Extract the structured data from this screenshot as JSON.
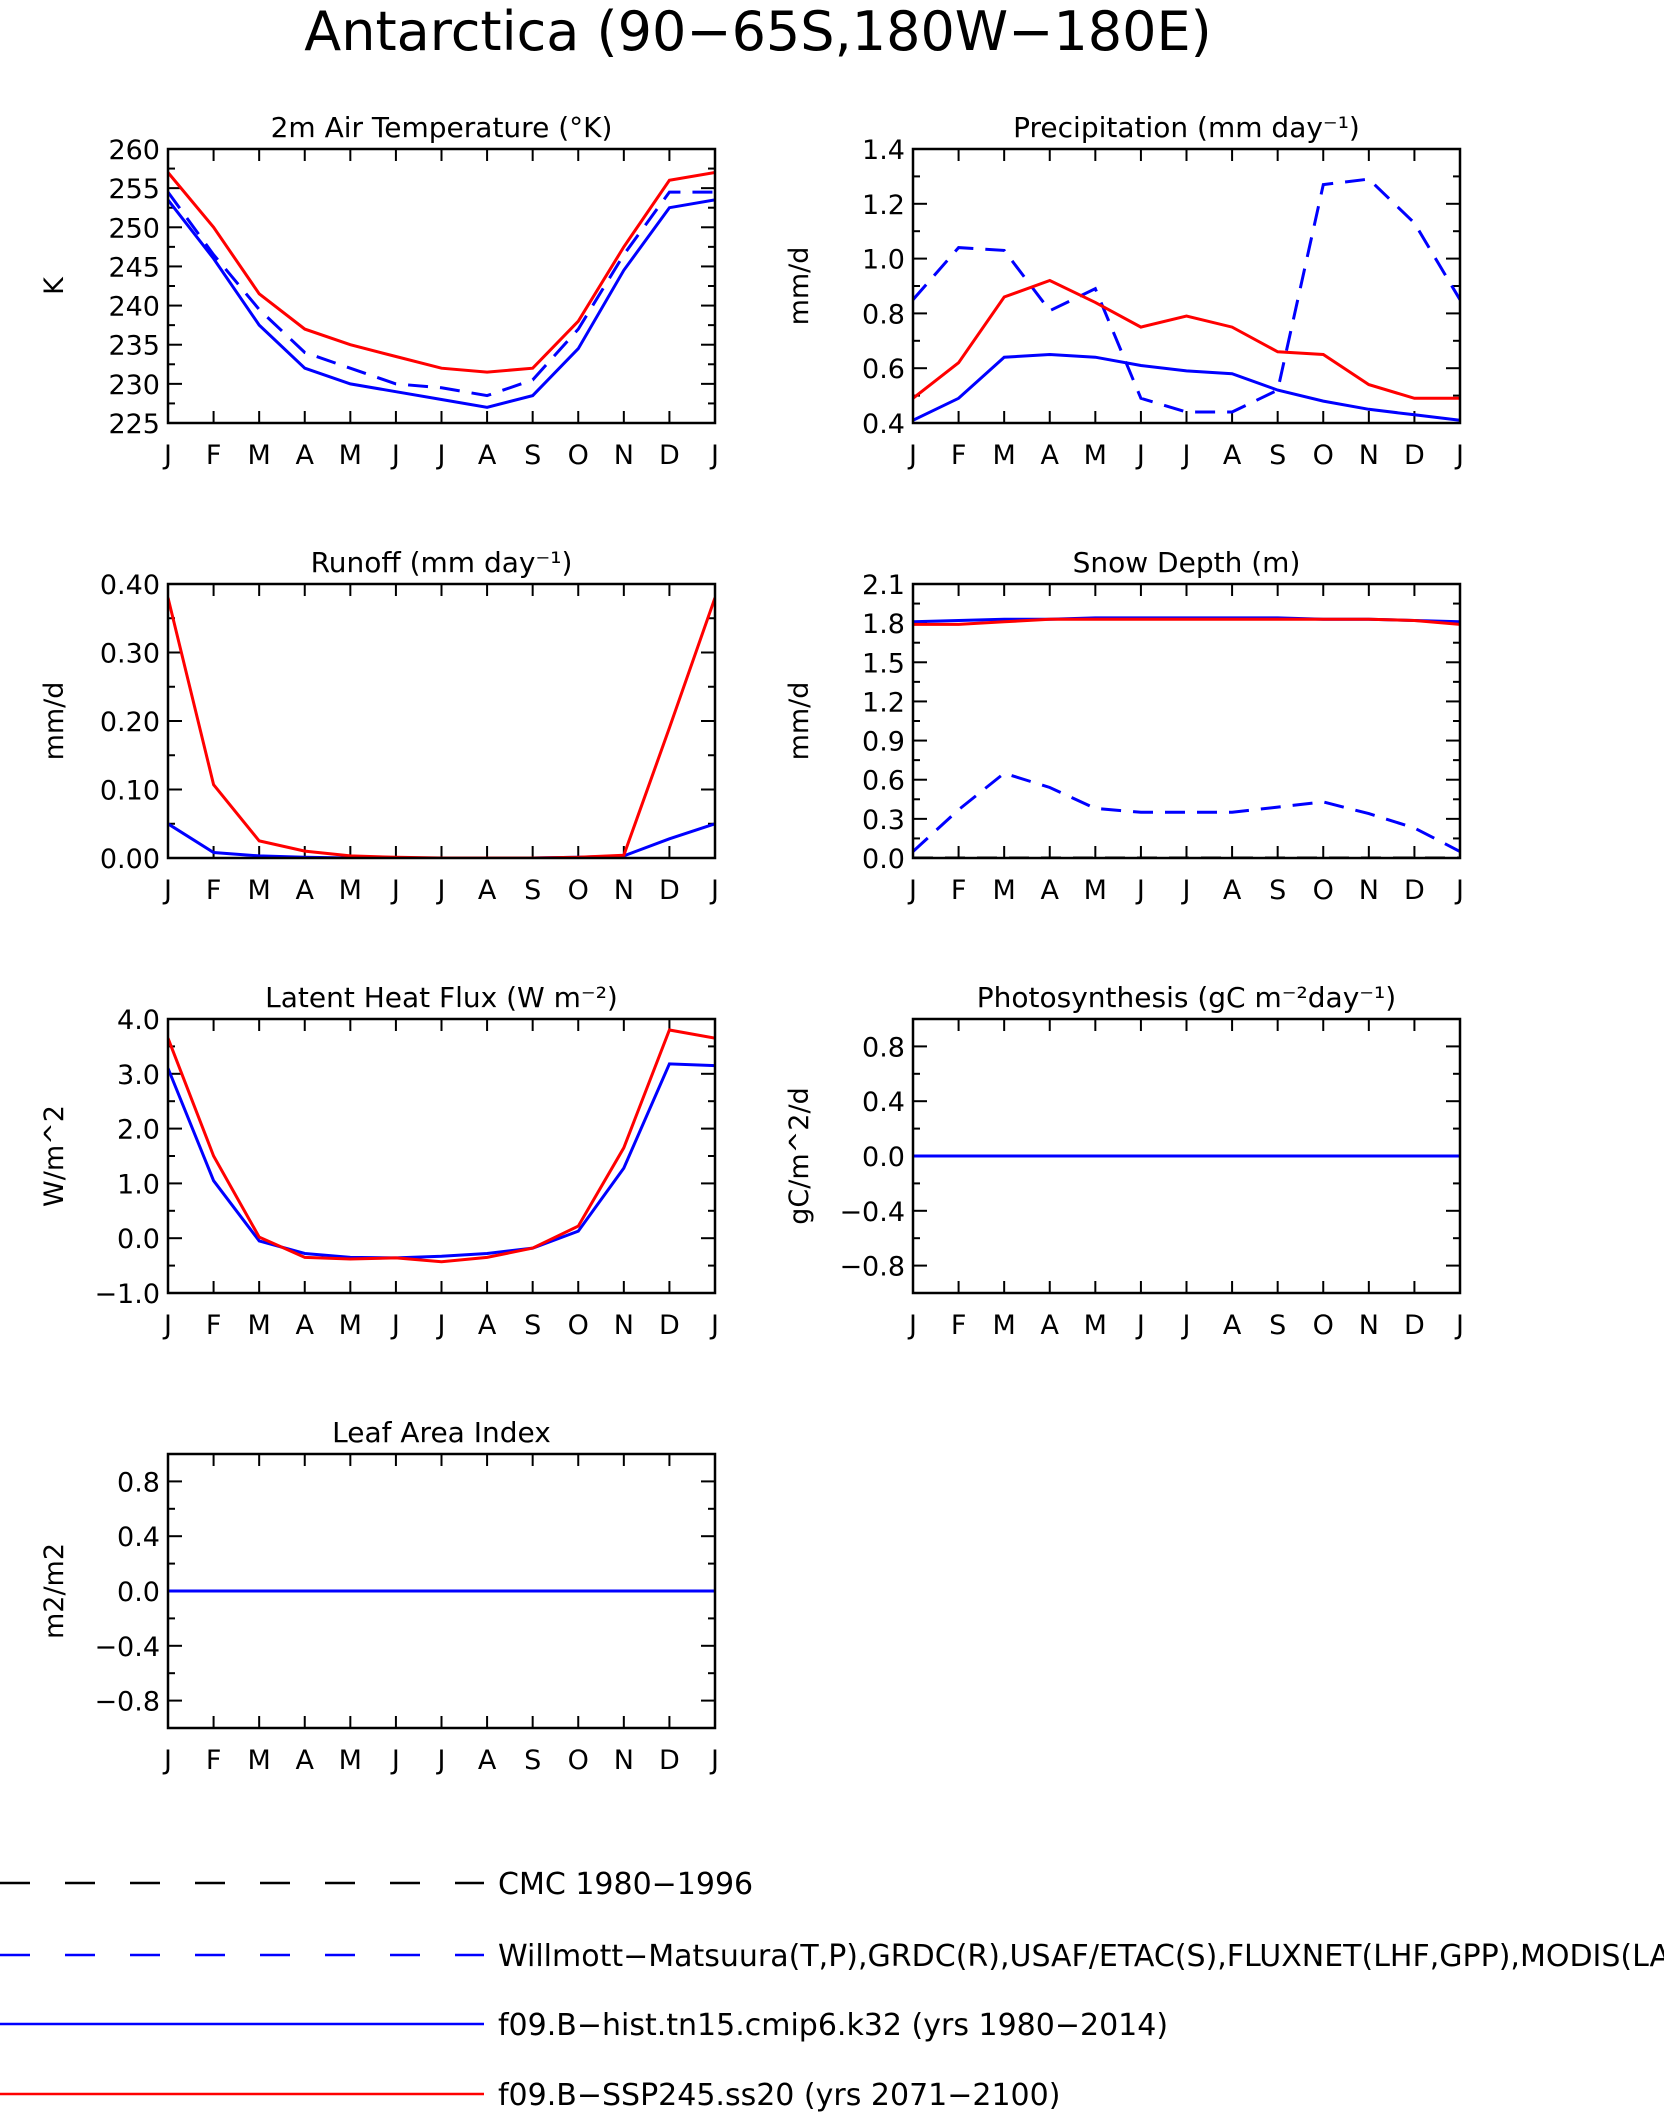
{
  "title": "Antarctica (90−65S,180W−180E)",
  "months": [
    "J",
    "F",
    "M",
    "A",
    "M",
    "J",
    "J",
    "A",
    "S",
    "O",
    "N",
    "D",
    "J"
  ],
  "colors": {
    "obs_cmc": "#000000",
    "obs_blue": "#0000ff",
    "model_hist": "#0000ff",
    "model_future": "#ff0000"
  },
  "chart_data": [
    {
      "id": "temp",
      "type": "line",
      "title": "2m Air Temperature (°K)",
      "ylabel": "K",
      "ylim": [
        225,
        260
      ],
      "yticks": [
        "225",
        "230",
        "235",
        "240",
        "245",
        "250",
        "255",
        "260"
      ],
      "categories": [
        "J",
        "F",
        "M",
        "A",
        "M",
        "J",
        "J",
        "A",
        "S",
        "O",
        "N",
        "D",
        "J"
      ],
      "series": [
        {
          "style": "dashed",
          "color": "#0000ff",
          "values": [
            254.5,
            246.5,
            239.5,
            234.0,
            232.0,
            230.0,
            229.5,
            228.5,
            230.5,
            237.0,
            246.5,
            254.5,
            254.5
          ]
        },
        {
          "style": "solid",
          "color": "#0000ff",
          "values": [
            253.5,
            246.0,
            237.5,
            232.0,
            230.0,
            229.0,
            228.0,
            227.0,
            228.5,
            234.5,
            244.5,
            252.5,
            253.5
          ]
        },
        {
          "style": "solid",
          "color": "#ff0000",
          "values": [
            257.0,
            250.0,
            241.5,
            237.0,
            235.0,
            233.5,
            232.0,
            231.5,
            232.0,
            238.0,
            247.5,
            256.0,
            257.0
          ]
        }
      ]
    },
    {
      "id": "precip",
      "type": "line",
      "title": "Precipitation (mm day⁻¹)",
      "ylabel": "mm/d",
      "ylim": [
        0.4,
        1.4
      ],
      "yticks": [
        "0.4",
        "0.6",
        "0.8",
        "1.0",
        "1.2",
        "1.4"
      ],
      "categories": [
        "J",
        "F",
        "M",
        "A",
        "M",
        "J",
        "J",
        "A",
        "S",
        "O",
        "N",
        "D",
        "J"
      ],
      "series": [
        {
          "style": "dashed",
          "color": "#0000ff",
          "values": [
            0.85,
            1.04,
            1.03,
            0.81,
            0.89,
            0.49,
            0.44,
            0.44,
            0.52,
            1.27,
            1.29,
            1.13,
            0.85
          ]
        },
        {
          "style": "solid",
          "color": "#0000ff",
          "values": [
            0.41,
            0.49,
            0.64,
            0.65,
            0.64,
            0.61,
            0.59,
            0.58,
            0.52,
            0.48,
            0.45,
            0.43,
            0.41
          ]
        },
        {
          "style": "solid",
          "color": "#ff0000",
          "values": [
            0.49,
            0.62,
            0.86,
            0.92,
            0.84,
            0.75,
            0.79,
            0.75,
            0.66,
            0.65,
            0.54,
            0.49,
            0.49
          ]
        }
      ]
    },
    {
      "id": "runoff",
      "type": "line",
      "title": "Runoff (mm day⁻¹)",
      "ylabel": "mm/d",
      "ylim": [
        0,
        0.4
      ],
      "yticks": [
        "0.00",
        "0.10",
        "0.20",
        "0.30",
        "0.40"
      ],
      "categories": [
        "J",
        "F",
        "M",
        "A",
        "M",
        "J",
        "J",
        "A",
        "S",
        "O",
        "N",
        "D",
        "J"
      ],
      "series": [
        {
          "style": "solid",
          "color": "#0000ff",
          "values": [
            0.05,
            0.008,
            0.003,
            0.001,
            0.0,
            0.0,
            0.0,
            0.0,
            0.0,
            0.001,
            0.003,
            0.028,
            0.05
          ]
        },
        {
          "style": "solid",
          "color": "#ff0000",
          "values": [
            0.38,
            0.107,
            0.025,
            0.01,
            0.003,
            0.001,
            0.0,
            0.0,
            0.0,
            0.001,
            0.004,
            0.19,
            0.38
          ]
        }
      ]
    },
    {
      "id": "snow",
      "type": "line",
      "title": "Snow Depth (m)",
      "ylabel": "mm/d",
      "ylim": [
        0,
        2.1
      ],
      "yticks": [
        "0.0",
        "0.3",
        "0.6",
        "0.9",
        "1.2",
        "1.5",
        "1.8",
        "2.1"
      ],
      "categories": [
        "J",
        "F",
        "M",
        "A",
        "M",
        "J",
        "J",
        "A",
        "S",
        "O",
        "N",
        "D",
        "J"
      ],
      "series": [
        {
          "style": "dashed",
          "color": "#000000",
          "values": [
            0.0,
            0.0,
            0.0,
            0.0,
            0.0,
            0.0,
            0.0,
            0.0,
            0.0,
            0.0,
            0.0,
            0.0,
            0.0
          ]
        },
        {
          "style": "dashed",
          "color": "#0000ff",
          "values": [
            0.05,
            0.37,
            0.65,
            0.54,
            0.38,
            0.35,
            0.35,
            0.35,
            0.39,
            0.43,
            0.34,
            0.23,
            0.05
          ]
        },
        {
          "style": "solid",
          "color": "#0000ff",
          "values": [
            1.81,
            1.82,
            1.83,
            1.83,
            1.84,
            1.84,
            1.84,
            1.84,
            1.84,
            1.83,
            1.83,
            1.82,
            1.81
          ]
        },
        {
          "style": "solid",
          "color": "#ff0000",
          "values": [
            1.79,
            1.79,
            1.81,
            1.83,
            1.83,
            1.83,
            1.83,
            1.83,
            1.83,
            1.83,
            1.83,
            1.82,
            1.79
          ]
        }
      ]
    },
    {
      "id": "lhf",
      "type": "line",
      "title": "Latent Heat Flux (W m⁻²)",
      "ylabel": "W/m^2",
      "ylim": [
        -1.0,
        4.0
      ],
      "yticks": [
        "−1.0",
        "0.0",
        "1.0",
        "2.0",
        "3.0",
        "4.0"
      ],
      "categories": [
        "J",
        "F",
        "M",
        "A",
        "M",
        "J",
        "J",
        "A",
        "S",
        "O",
        "N",
        "D",
        "J"
      ],
      "series": [
        {
          "style": "solid",
          "color": "#0000ff",
          "values": [
            3.1,
            1.05,
            -0.05,
            -0.28,
            -0.35,
            -0.36,
            -0.33,
            -0.28,
            -0.18,
            0.13,
            1.28,
            3.18,
            3.15
          ]
        },
        {
          "style": "solid",
          "color": "#ff0000",
          "values": [
            3.65,
            1.5,
            0.02,
            -0.35,
            -0.38,
            -0.36,
            -0.43,
            -0.35,
            -0.18,
            0.22,
            1.65,
            3.8,
            3.65
          ]
        }
      ]
    },
    {
      "id": "photo",
      "type": "line",
      "title": "Photosynthesis (gC m⁻²day⁻¹)",
      "ylabel": "gC/m^2/d",
      "ylim": [
        -1.0,
        1.0
      ],
      "yticks": [
        "−0.8",
        "−0.4",
        "0.0",
        "0.4",
        "0.8"
      ],
      "categories": [
        "J",
        "F",
        "M",
        "A",
        "M",
        "J",
        "J",
        "A",
        "S",
        "O",
        "N",
        "D",
        "J"
      ],
      "series": [
        {
          "style": "solid",
          "color": "#ff0000",
          "values": [
            0,
            0,
            0,
            0,
            0,
            0,
            0,
            0,
            0,
            0,
            0,
            0,
            0
          ]
        },
        {
          "style": "solid",
          "color": "#0000ff",
          "values": [
            0,
            0,
            0,
            0,
            0,
            0,
            0,
            0,
            0,
            0,
            0,
            0,
            0
          ]
        }
      ]
    },
    {
      "id": "lai",
      "type": "line",
      "title": "Leaf Area Index",
      "ylabel": "m2/m2",
      "ylim": [
        -1.0,
        1.0
      ],
      "yticks": [
        "−0.8",
        "−0.4",
        "0.0",
        "0.4",
        "0.8"
      ],
      "categories": [
        "J",
        "F",
        "M",
        "A",
        "M",
        "J",
        "J",
        "A",
        "S",
        "O",
        "N",
        "D",
        "J"
      ],
      "series": [
        {
          "style": "solid",
          "color": "#ff0000",
          "values": [
            0,
            0,
            0,
            0,
            0,
            0,
            0,
            0,
            0,
            0,
            0,
            0,
            0
          ]
        },
        {
          "style": "solid",
          "color": "#0000ff",
          "values": [
            0,
            0,
            0,
            0,
            0,
            0,
            0,
            0,
            0,
            0,
            0,
            0,
            0
          ]
        }
      ]
    }
  ],
  "legend": [
    {
      "style": "dashed",
      "color": "#000000",
      "label": "CMC 1980−1996"
    },
    {
      "style": "dashed",
      "color": "#0000ff",
      "label": "Willmott−Matsuura(T,P),GRDC(R),USAF/ETAC(S),FLUXNET(LHF,GPP),MODIS(LAI)"
    },
    {
      "style": "solid",
      "color": "#0000ff",
      "label": "f09.B−hist.tn15.cmip6.k32 (yrs 1980−2014)"
    },
    {
      "style": "solid",
      "color": "#ff0000",
      "label": "f09.B−SSP245.ss20 (yrs 2071−2100)"
    }
  ]
}
